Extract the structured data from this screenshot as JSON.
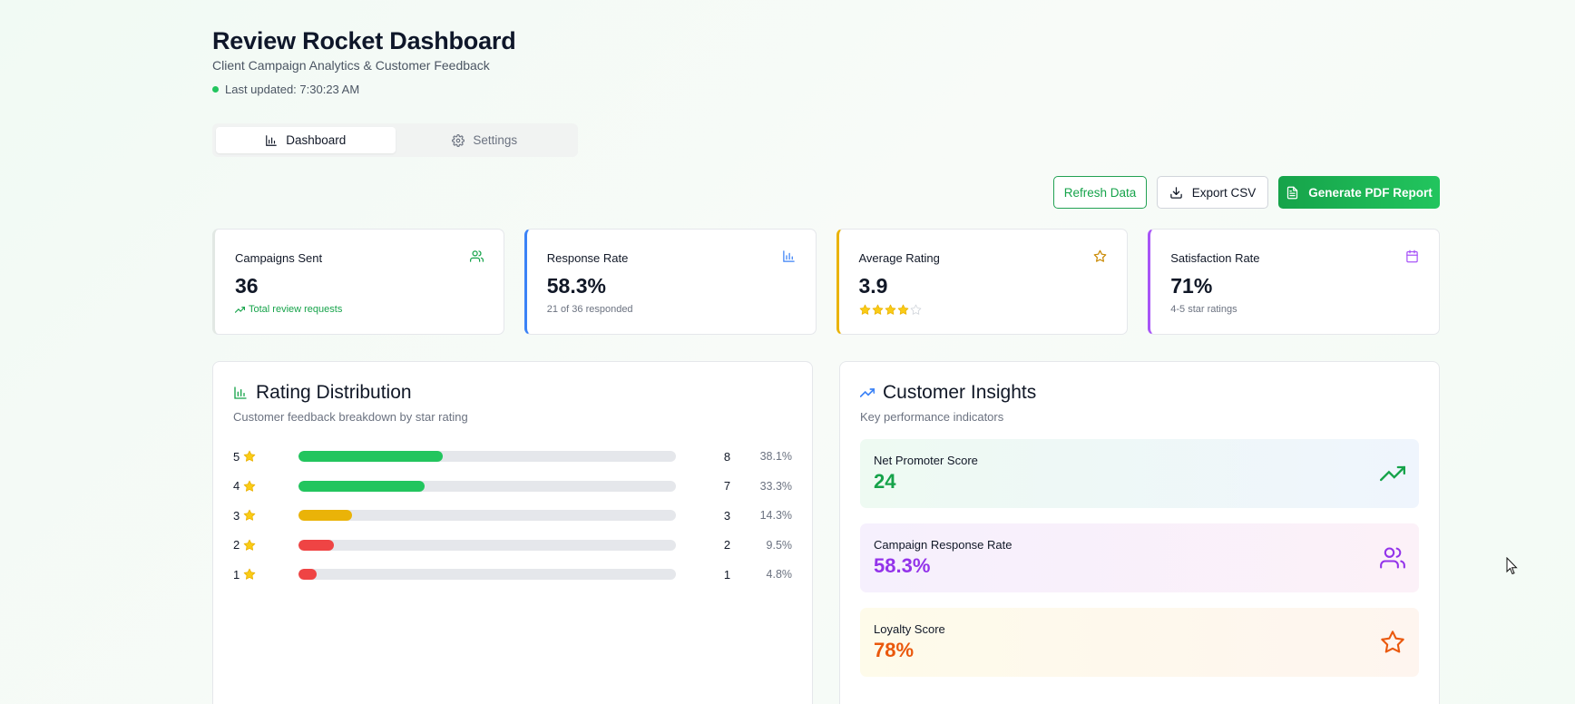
{
  "header": {
    "title": "Review Rocket Dashboard",
    "subtitle": "Client Campaign Analytics & Customer Feedback",
    "last_updated": "Last updated: 7:30:23 AM"
  },
  "tabs": [
    {
      "label": "Dashboard",
      "icon": "bar-chart-icon",
      "active": true
    },
    {
      "label": "Settings",
      "icon": "gear-icon",
      "active": false
    }
  ],
  "actions": {
    "refresh": "Refresh Data",
    "export": "Export CSV",
    "pdf": "Generate PDF Report"
  },
  "stats": [
    {
      "label": "Campaigns Sent",
      "value": "36",
      "sub": "Total review requests",
      "icon": "users-icon",
      "color": "#16a34a"
    },
    {
      "label": "Response Rate",
      "value": "58.3%",
      "sub": "21 of 36 responded",
      "icon": "bar-chart-icon",
      "color": "#3b82f6"
    },
    {
      "label": "Average Rating",
      "value": "3.9",
      "rating": 3.9,
      "icon": "star-icon",
      "color": "#ca8a04"
    },
    {
      "label": "Satisfaction Rate",
      "value": "71%",
      "sub": "4-5 star ratings",
      "icon": "calendar-icon",
      "color": "#a855f7"
    }
  ],
  "distribution": {
    "title": "Rating Distribution",
    "description": "Customer feedback breakdown by star rating",
    "rows": [
      {
        "stars": "5",
        "count": "8",
        "percent": "38.1%",
        "fraction": 0.381,
        "color": "#22c55e"
      },
      {
        "stars": "4",
        "count": "7",
        "percent": "33.3%",
        "fraction": 0.333,
        "color": "#22c55e"
      },
      {
        "stars": "3",
        "count": "3",
        "percent": "14.3%",
        "fraction": 0.143,
        "color": "#eab308"
      },
      {
        "stars": "2",
        "count": "2",
        "percent": "9.5%",
        "fraction": 0.095,
        "color": "#ef4444"
      },
      {
        "stars": "1",
        "count": "1",
        "percent": "4.8%",
        "fraction": 0.048,
        "color": "#ef4444"
      }
    ]
  },
  "insights": {
    "title": "Customer Insights",
    "description": "Key performance indicators",
    "items": [
      {
        "label": "Net Promoter Score",
        "value": "24",
        "color": "#16a34a",
        "icon": "trending-up-icon"
      },
      {
        "label": "Campaign Response Rate",
        "value": "58.3%",
        "color": "#9333ea",
        "icon": "users-icon"
      },
      {
        "label": "Loyalty Score",
        "value": "78%",
        "color": "#ea580c",
        "icon": "star-icon"
      }
    ]
  }
}
